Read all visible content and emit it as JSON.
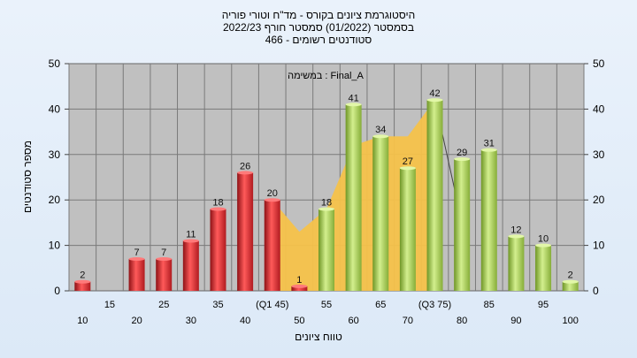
{
  "chart_data": {
    "type": "bar",
    "title_lines": [
      "היסטוגרמת ציונים בקורס - מד\"ח וטורי פוריה",
      "בסמסטר  (01/2022)  סמסטר חורף 2022/23",
      "סטודנטים רשומים - 466"
    ],
    "annotation": "במשימה : Final_A",
    "xlabel": "טווח ציונים",
    "ylabel": "מספר סטודנטים",
    "ylim": [
      0,
      50
    ],
    "yticks": [
      0,
      10,
      20,
      30,
      40,
      50
    ],
    "grid": true,
    "x_tick_labels": [
      "10",
      "15",
      "20",
      "25",
      "30",
      "35",
      "40",
      "(Q1 45)",
      "50",
      "55",
      "60",
      "65",
      "70",
      "(Q3 75)",
      "80",
      "85",
      "90",
      "95",
      "100"
    ],
    "categories": [
      "10",
      "15",
      "20",
      "25",
      "30",
      "35",
      "40",
      "45",
      "50",
      "55",
      "60",
      "65",
      "70",
      "75",
      "80",
      "85",
      "90",
      "95",
      "100"
    ],
    "values": [
      2,
      0,
      7,
      7,
      11,
      18,
      26,
      20,
      1,
      18,
      41,
      34,
      27,
      42,
      29,
      31,
      12,
      10,
      2
    ],
    "value_labels": [
      "2",
      "",
      "7",
      "7",
      "11",
      "18",
      "26",
      "20",
      "1",
      "18",
      "41",
      "34",
      "27",
      "42",
      "29",
      "31",
      "12",
      "10",
      "2"
    ],
    "bar_colors": [
      "red",
      "red",
      "red",
      "red",
      "red",
      "red",
      "red",
      "red",
      "red",
      "green",
      "green",
      "green",
      "green",
      "green",
      "green",
      "green",
      "green",
      "green",
      "green"
    ],
    "interquartile_area": {
      "from_category": "45",
      "to_category": "75",
      "values": [
        20,
        13,
        18,
        32,
        34,
        34,
        42
      ],
      "color": "#f5c24a"
    },
    "colors": {
      "red": "#d9262c",
      "green": "#9bc34a",
      "plot_bg": "#c0c0c0",
      "grid": "#7a7a7a"
    }
  }
}
